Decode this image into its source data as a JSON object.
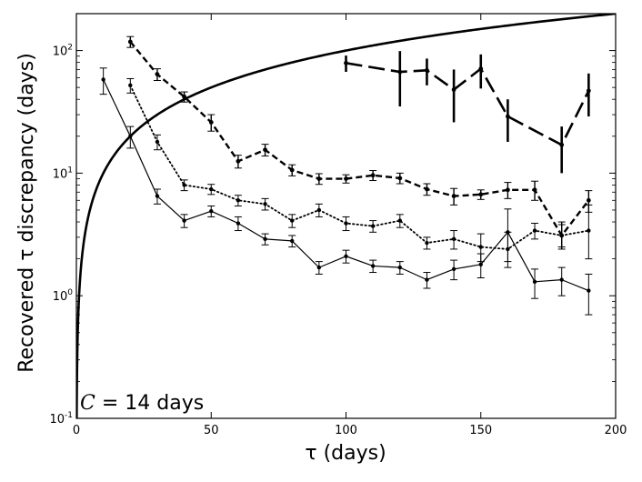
{
  "chart_data": {
    "type": "line",
    "title": "",
    "xlabel": "τ (days)",
    "ylabel": "Recovered τ discrepancy (days)",
    "xlim": [
      0,
      200
    ],
    "ylim": [
      0.1,
      200
    ],
    "yscale": "log",
    "grid": false,
    "x_ticks": [
      0,
      50,
      100,
      150,
      200
    ],
    "x_tick_labels": [
      "0",
      "50",
      "100",
      "150",
      "200"
    ],
    "y_ticks": [
      0.1,
      1,
      10,
      100
    ],
    "y_tick_labels": [
      {
        "base": "10",
        "exp": "-1"
      },
      {
        "base": "10",
        "exp": "0"
      },
      {
        "base": "10",
        "exp": "1"
      },
      {
        "base": "10",
        "exp": "2"
      }
    ],
    "annotation": {
      "symbol": "C",
      "text": " = 14 days"
    },
    "curve": {
      "name": "y = x",
      "style": "solid-thick"
    },
    "series": [
      {
        "name": "series-solid-thin",
        "style": "solid-thin",
        "x": [
          10,
          20,
          30,
          40,
          50,
          60,
          70,
          80,
          90,
          100,
          110,
          120,
          130,
          140,
          150,
          160,
          170,
          180,
          190
        ],
        "y": [
          58,
          20,
          6.5,
          4.1,
          4.9,
          3.9,
          2.9,
          2.8,
          1.7,
          2.1,
          1.75,
          1.7,
          1.35,
          1.65,
          1.8,
          3.3,
          1.3,
          1.35,
          1.1
        ],
        "err": [
          [
            44,
            72
          ],
          [
            16,
            24
          ],
          [
            5.6,
            7.4
          ],
          [
            3.6,
            4.6
          ],
          [
            4.4,
            5.4
          ],
          [
            3.4,
            4.4
          ],
          [
            2.6,
            3.2
          ],
          [
            2.5,
            3.1
          ],
          [
            1.5,
            1.9
          ],
          [
            1.85,
            2.35
          ],
          [
            1.55,
            1.95
          ],
          [
            1.5,
            1.9
          ],
          [
            1.15,
            1.55
          ],
          [
            1.35,
            1.95
          ],
          [
            1.4,
            2.2
          ],
          [
            1.9,
            5.1
          ],
          [
            0.95,
            1.65
          ],
          [
            1.0,
            1.7
          ],
          [
            0.7,
            1.5
          ]
        ]
      },
      {
        "name": "series-dotted",
        "style": "dotted",
        "x": [
          20,
          30,
          40,
          50,
          60,
          70,
          80,
          90,
          100,
          110,
          120,
          130,
          140,
          150,
          160,
          170,
          180,
          190
        ],
        "y": [
          52,
          18,
          8,
          7.4,
          6,
          5.6,
          4.1,
          5,
          3.9,
          3.7,
          4.1,
          2.7,
          2.9,
          2.5,
          2.4,
          3.4,
          3.1,
          3.4
        ],
        "err": [
          [
            45,
            59
          ],
          [
            15.5,
            20.5
          ],
          [
            7.2,
            8.8
          ],
          [
            6.7,
            8.1
          ],
          [
            5.4,
            6.6
          ],
          [
            5,
            6.2
          ],
          [
            3.6,
            4.6
          ],
          [
            4.4,
            5.6
          ],
          [
            3.4,
            4.4
          ],
          [
            3.3,
            4.1
          ],
          [
            3.6,
            4.6
          ],
          [
            2.4,
            3.0
          ],
          [
            2.4,
            3.4
          ],
          [
            1.9,
            3.2
          ],
          [
            1.7,
            3.3
          ],
          [
            2.9,
            3.9
          ],
          [
            2.5,
            3.8
          ],
          [
            2.0,
            5.5
          ]
        ]
      },
      {
        "name": "series-short-dash",
        "style": "short-dash",
        "x": [
          20,
          30,
          40,
          50,
          60,
          70,
          80,
          90,
          100,
          110,
          120,
          130,
          140,
          150,
          160,
          170,
          180,
          190
        ],
        "y": [
          118,
          64,
          42,
          26,
          12.5,
          15.5,
          10.6,
          9,
          9,
          9.6,
          9.1,
          7.4,
          6.5,
          6.7,
          7.3,
          7.3,
          3.1,
          6
        ],
        "err": [
          [
            106,
            130
          ],
          [
            57,
            71
          ],
          [
            38,
            46
          ],
          [
            22,
            30
          ],
          [
            11,
            14
          ],
          [
            13.8,
            17.2
          ],
          [
            9.5,
            11.7
          ],
          [
            8.1,
            9.9
          ],
          [
            8.3,
            9.7
          ],
          [
            8.7,
            10.5
          ],
          [
            8.2,
            10
          ],
          [
            6.6,
            8.2
          ],
          [
            5.5,
            7.5
          ],
          [
            6.1,
            7.3
          ],
          [
            6.2,
            8.4
          ],
          [
            6.0,
            8.6
          ],
          [
            2.4,
            4.0
          ],
          [
            4.8,
            7.2
          ]
        ]
      },
      {
        "name": "series-long-dash",
        "style": "long-dash",
        "x": [
          100,
          120,
          130,
          140,
          150,
          160,
          180,
          190
        ],
        "y": [
          79,
          67,
          69,
          48,
          71,
          29,
          17,
          47
        ],
        "err": [
          [
            67,
            91
          ],
          [
            35,
            99
          ],
          [
            52,
            86
          ],
          [
            26,
            70
          ],
          [
            49,
            93
          ],
          [
            18,
            40
          ],
          [
            10,
            24
          ],
          [
            29,
            65
          ]
        ]
      }
    ]
  }
}
